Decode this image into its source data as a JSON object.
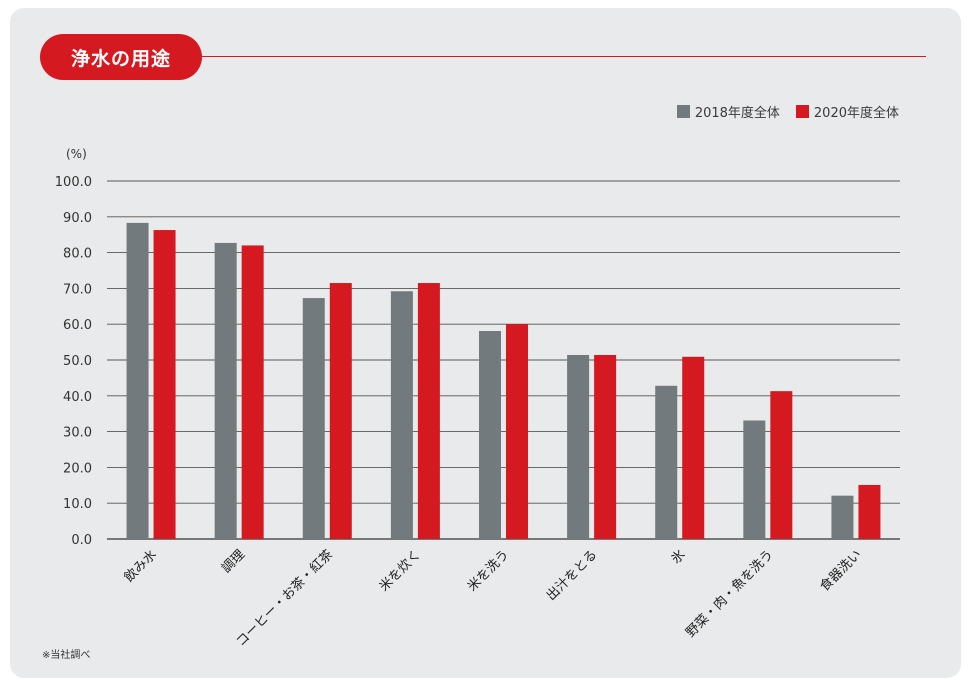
{
  "title": "浄水の用途",
  "footnote": "※当社調べ",
  "colors": {
    "series1": "#727a7e",
    "series2": "#d41a20",
    "grid": "#555555"
  },
  "chart_data": {
    "type": "bar",
    "ylabel": "(%)",
    "ylim": [
      0,
      100
    ],
    "yticks": [
      "0.0",
      "10.0",
      "20.0",
      "30.0",
      "40.0",
      "50.0",
      "60.0",
      "70.0",
      "80.0",
      "90.0",
      "100.0"
    ],
    "categories": [
      "飲み水",
      "調理",
      "コーヒー・お茶・紅茶",
      "米を炊く",
      "米を洗う",
      "出汁をとる",
      "氷",
      "野菜・肉・魚を洗う",
      "食器洗い"
    ],
    "series": [
      {
        "name": "2018年度全体",
        "values": [
          88.3,
          82.7,
          67.3,
          69.2,
          58.1,
          51.4,
          42.8,
          33.1,
          12.1
        ]
      },
      {
        "name": "2020年度全体",
        "values": [
          86.3,
          82.0,
          71.5,
          71.5,
          60.0,
          51.4,
          50.9,
          41.3,
          15.1
        ]
      }
    ],
    "legend_position": "top-right",
    "grid": true
  }
}
